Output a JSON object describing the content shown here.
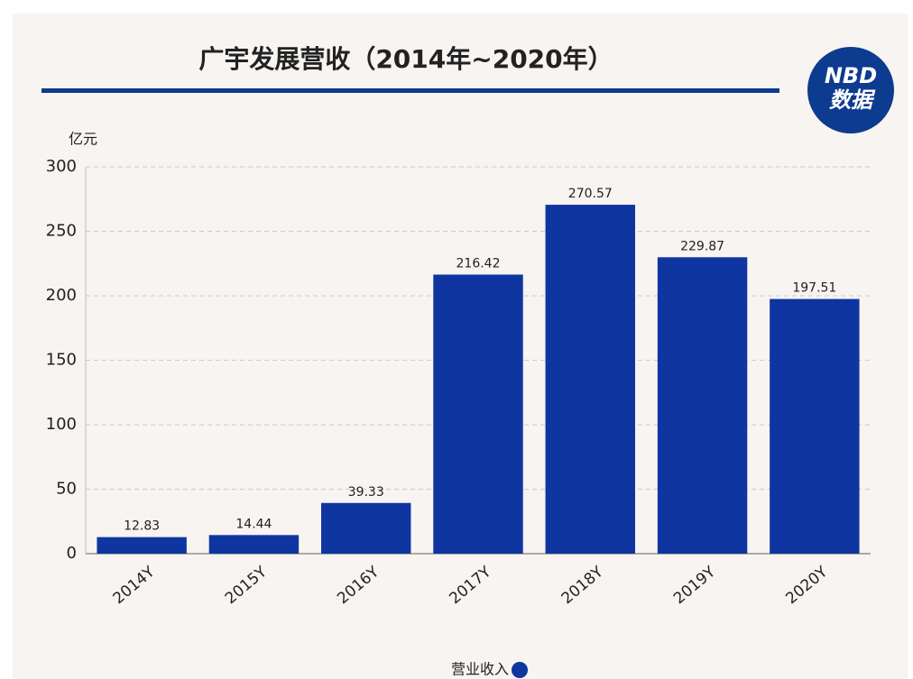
{
  "chart_data": {
    "type": "bar",
    "title": "广宇发展营收（2014年~2020年）",
    "y_unit": "亿元",
    "categories": [
      "2014Y",
      "2015Y",
      "2016Y",
      "2017Y",
      "2018Y",
      "2019Y",
      "2020Y"
    ],
    "series": [
      {
        "name": "营业收入",
        "color": "#0f35a0",
        "values": [
          12.83,
          14.44,
          39.33,
          216.42,
          270.57,
          229.87,
          197.51
        ]
      }
    ],
    "ylim": [
      0,
      300
    ],
    "yticks": [
      0,
      50,
      100,
      150,
      200,
      250,
      300
    ],
    "grid": true,
    "legend": "bottom"
  },
  "logo": {
    "top": "NBD",
    "bottom": "数据"
  }
}
